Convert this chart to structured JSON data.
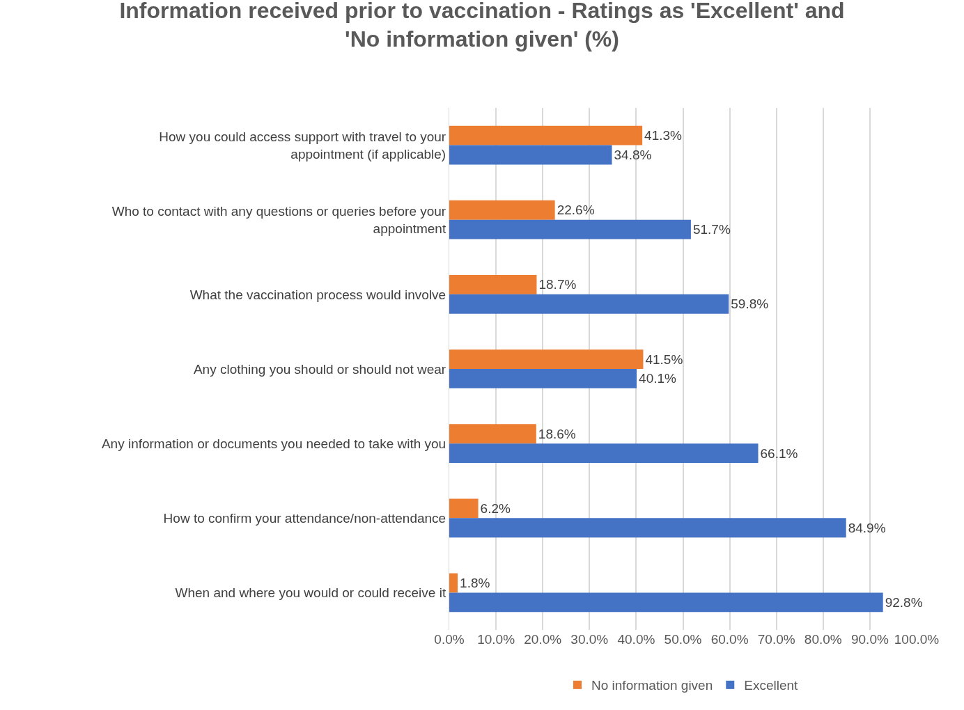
{
  "chart_data": {
    "type": "bar",
    "orientation": "horizontal",
    "title": "Information received prior to vaccination - Ratings as 'Excellent' and 'No information given' (%)",
    "categories": [
      "How you could access support with travel to your appointment (if applicable)",
      "Who to contact with any questions or queries before your appointment",
      "What the vaccination process would involve",
      "Any clothing you should or should not wear",
      "Any information or documents you needed to take with you",
      "How to confirm your attendance/non-attendance",
      "When and where you would or could receive it"
    ],
    "series": [
      {
        "name": "No information given",
        "color": "#ed7d31",
        "values": [
          41.3,
          22.6,
          18.7,
          41.5,
          18.6,
          6.2,
          1.8
        ],
        "value_labels": [
          "41.3%",
          "22.6%",
          "18.7%",
          "41.5%",
          "18.6%",
          "6.2%",
          "1.8%"
        ]
      },
      {
        "name": "Excellent",
        "color": "#4472c4",
        "values": [
          34.8,
          51.7,
          59.8,
          40.1,
          66.1,
          84.9,
          92.8
        ],
        "value_labels": [
          "34.8%",
          "51.7%",
          "59.8%",
          "40.1%",
          "66.1%",
          "84.9%",
          "92.8%"
        ]
      }
    ],
    "xlim": [
      0,
      100
    ],
    "xticks": [
      {
        "value": 0,
        "label": "0.0%"
      },
      {
        "value": 10,
        "label": "10.0%"
      },
      {
        "value": 20,
        "label": "20.0%"
      },
      {
        "value": 30,
        "label": "30.0%"
      },
      {
        "value": 40,
        "label": "40.0%"
      },
      {
        "value": 50,
        "label": "50.0%"
      },
      {
        "value": 60,
        "label": "60.0%"
      },
      {
        "value": 70,
        "label": "70.0%"
      },
      {
        "value": 80,
        "label": "80.0%"
      },
      {
        "value": 90,
        "label": "90.0%"
      },
      {
        "value": 100,
        "label": "100.0%"
      }
    ],
    "grid": "x",
    "legend": "bottom"
  }
}
